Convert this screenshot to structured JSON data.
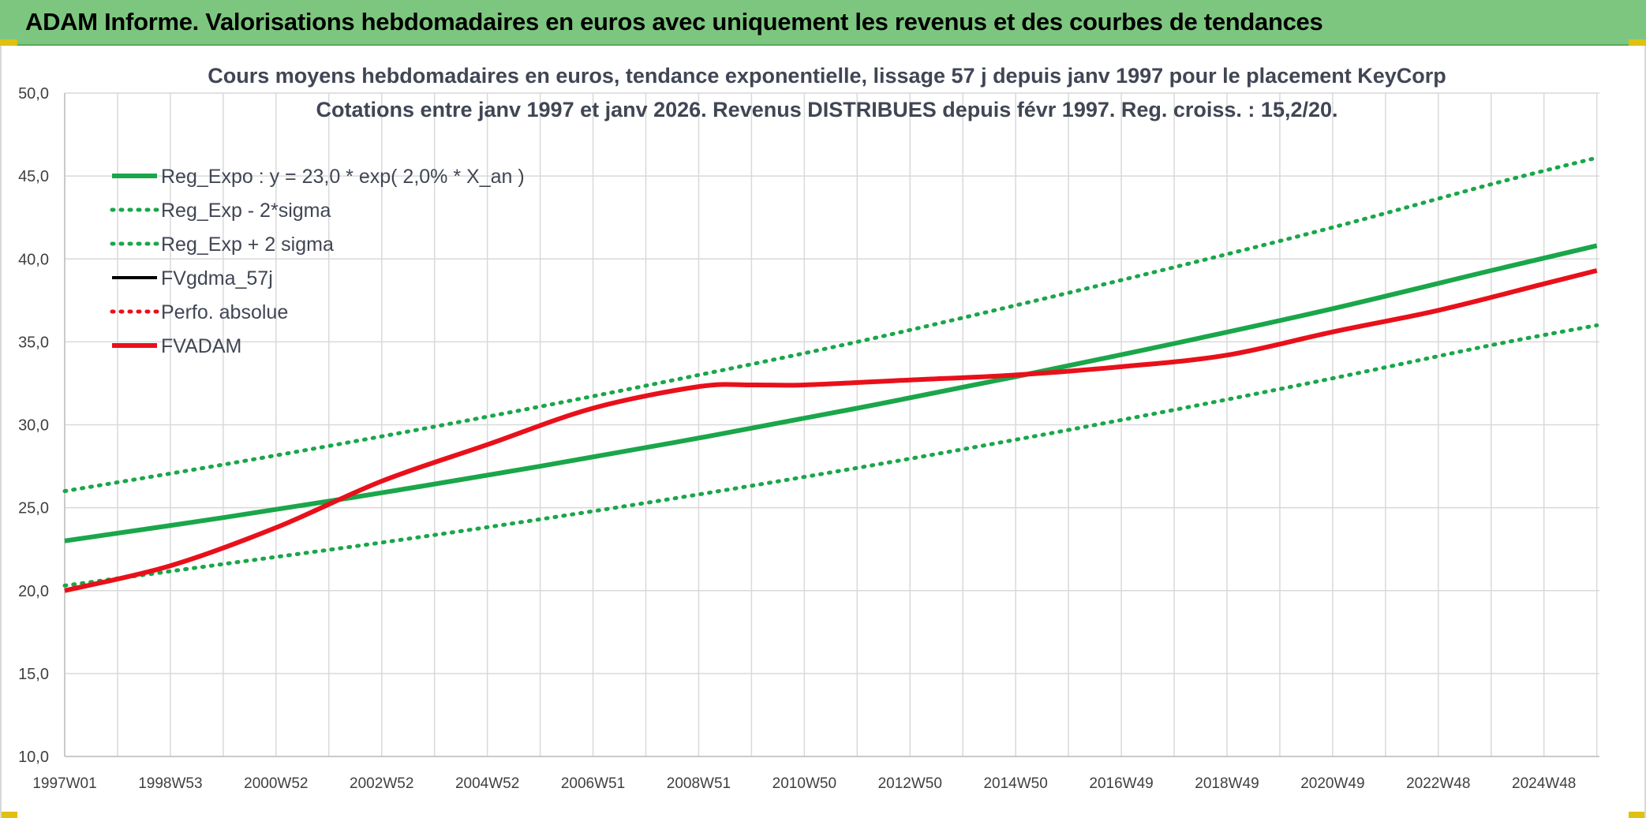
{
  "banner": {
    "title": "ADAM Informe. Valorisations hebdomadaires en euros avec uniquement les revenus et des courbes de tendances"
  },
  "colors": {
    "banner_bg": "#7dc67f",
    "green": "#1aa64a",
    "red": "#e8101a",
    "black": "#000000",
    "grid": "#d9d9d9"
  },
  "chart_data": {
    "type": "line",
    "title": "Cours moyens hebdomadaires en euros, tendance exponentielle, lissage 57 j depuis janv 1997 pour le placement KeyCorp",
    "subtitle": "Cotations entre janv 1997 et janv 2026. Revenus DISTRIBUES depuis févr 1997. Reg. croiss. : 15,2/20.",
    "xlabel": "",
    "ylabel": "",
    "xlim": [
      1997.0,
      2026.05
    ],
    "ylim": [
      10,
      50
    ],
    "y_ticks": [
      "10,0",
      "15,0",
      "20,0",
      "25,0",
      "30,0",
      "35,0",
      "40,0",
      "45,0",
      "50,0"
    ],
    "x_ticks": [
      {
        "label": "1997W01",
        "x": 1997.0
      },
      {
        "label": "1998W53",
        "x": 1999.0
      },
      {
        "label": "2000W52",
        "x": 2001.0
      },
      {
        "label": "2002W52",
        "x": 2003.0
      },
      {
        "label": "2004W52",
        "x": 2005.0
      },
      {
        "label": "2006W51",
        "x": 2007.0
      },
      {
        "label": "2008W51",
        "x": 2009.0
      },
      {
        "label": "2010W50",
        "x": 2011.0
      },
      {
        "label": "2012W50",
        "x": 2013.0
      },
      {
        "label": "2014W50",
        "x": 2015.0
      },
      {
        "label": "2016W49",
        "x": 2017.0
      },
      {
        "label": "2018W49",
        "x": 2019.0
      },
      {
        "label": "2020W49",
        "x": 2021.0
      },
      {
        "label": "2022W48",
        "x": 2023.0
      },
      {
        "label": "2024W48",
        "x": 2025.0
      }
    ],
    "grid": true,
    "legend_position": "top-left",
    "series": [
      {
        "name": "Reg_Expo : y = 23,0 * exp( 2,0% *  X_an )",
        "style": "solid-thick",
        "color": "#1aa64a",
        "x": [
          1997,
          2000,
          2003,
          2006,
          2009,
          2012,
          2015,
          2018,
          2021,
          2024,
          2026
        ],
        "y": [
          23.0,
          24.4,
          25.9,
          27.5,
          29.2,
          31.0,
          32.9,
          34.9,
          37.0,
          39.3,
          40.8
        ]
      },
      {
        "name": "Reg_Exp - 2*sigma",
        "style": "dotted",
        "color": "#1aa64a",
        "x": [
          1997,
          2000,
          2003,
          2006,
          2009,
          2012,
          2015,
          2018,
          2021,
          2024,
          2026
        ],
        "y": [
          20.3,
          21.6,
          22.9,
          24.3,
          25.8,
          27.4,
          29.1,
          30.9,
          32.8,
          34.8,
          36.0
        ]
      },
      {
        "name": "Reg_Exp + 2 sigma",
        "style": "dotted",
        "color": "#1aa64a",
        "x": [
          1997,
          2000,
          2003,
          2006,
          2009,
          2012,
          2015,
          2018,
          2021,
          2024,
          2026
        ],
        "y": [
          26.0,
          27.6,
          29.3,
          31.1,
          33.0,
          35.0,
          37.2,
          39.5,
          41.9,
          44.5,
          46.1
        ]
      },
      {
        "name": "FVgdma_57j",
        "style": "solid",
        "color": "#000000",
        "x": [],
        "y": []
      },
      {
        "name": "Perfo. absolue",
        "style": "dotted",
        "color": "#e8101a",
        "x": [],
        "y": []
      },
      {
        "name": "FVADAM",
        "style": "solid-thick",
        "color": "#e8101a",
        "x": [
          1997,
          1999,
          2001,
          2003,
          2005,
          2007,
          2009,
          2010,
          2011,
          2013,
          2015,
          2017,
          2019,
          2021,
          2023,
          2025,
          2026
        ],
        "y": [
          20.0,
          21.5,
          23.8,
          26.6,
          28.8,
          31.0,
          32.3,
          32.4,
          32.4,
          32.7,
          33.0,
          33.5,
          34.2,
          35.6,
          36.9,
          38.5,
          39.3
        ]
      }
    ]
  }
}
